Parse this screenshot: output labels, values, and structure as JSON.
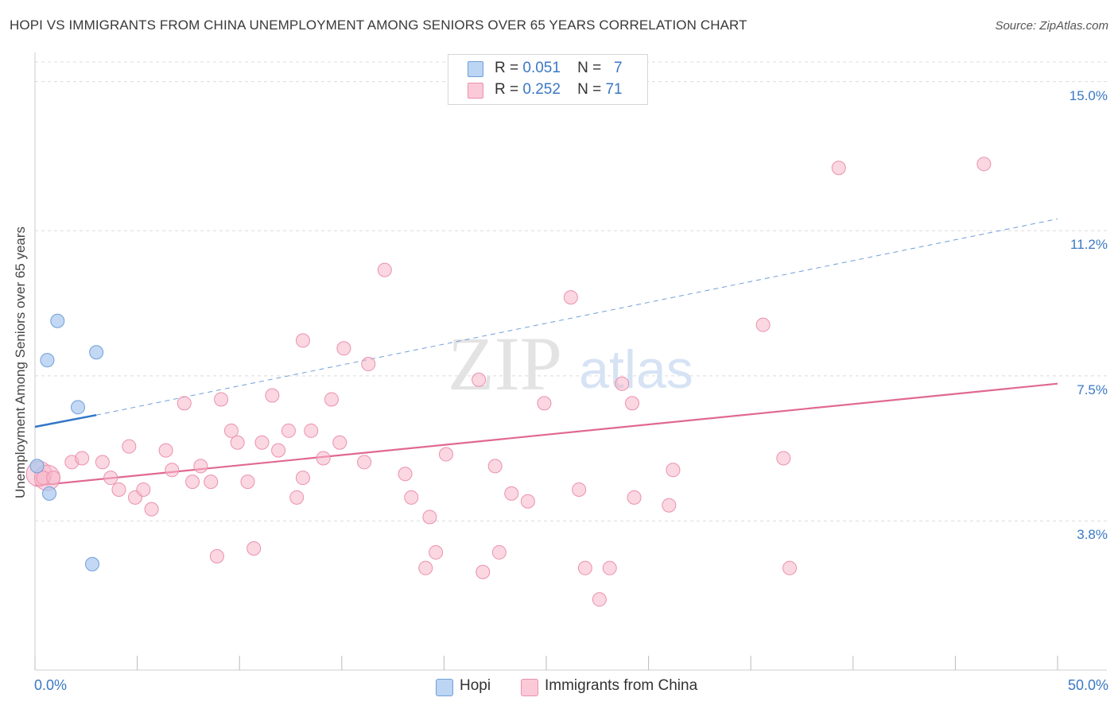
{
  "title": "HOPI VS IMMIGRANTS FROM CHINA UNEMPLOYMENT AMONG SENIORS OVER 65 YEARS CORRELATION CHART",
  "source": "Source: ZipAtlas.com",
  "watermark": {
    "zip": "ZIP",
    "atlas": "atlas"
  },
  "legend_top": [
    {
      "r_label": "R =",
      "r_value": "0.051",
      "n_label": "N =",
      "n_value": "7"
    },
    {
      "r_label": "R =",
      "r_value": "0.252",
      "n_label": "N =",
      "n_value": "71"
    }
  ],
  "legend_bottom": [
    {
      "label": "Hopi"
    },
    {
      "label": "Immigrants from China"
    }
  ],
  "colors": {
    "hopi_fill": "#a9c8ef",
    "hopi_stroke": "#6f9fd8",
    "hopi_line": "#3276c8",
    "china_fill": "#f7b6cb",
    "china_stroke": "#ea91ae",
    "china_line": "#e06892",
    "grid": "#dcdcdc",
    "axis_text": "#3a78c4"
  },
  "chart_data": {
    "type": "scatter",
    "title": "HOPI VS IMMIGRANTS FROM CHINA UNEMPLOYMENT AMONG SENIORS OVER 65 YEARS CORRELATION CHART",
    "xlabel": "",
    "ylabel": "Unemployment Among Seniors over 65 years",
    "xlim": [
      0,
      50
    ],
    "ylim": [
      0,
      15.5
    ],
    "x_tick_labels": [
      "0.0%",
      "50.0%"
    ],
    "y_ticks": [
      {
        "value": 3.8,
        "label": "3.8%"
      },
      {
        "value": 7.5,
        "label": "7.5%"
      },
      {
        "value": 11.2,
        "label": "11.2%"
      },
      {
        "value": 15.0,
        "label": "15.0%"
      }
    ],
    "grid": true,
    "series": [
      {
        "name": "Hopi",
        "R": 0.051,
        "N": 7,
        "points": [
          [
            0.1,
            5.2
          ],
          [
            1.1,
            8.9
          ],
          [
            0.6,
            7.9
          ],
          [
            3.0,
            8.1
          ],
          [
            2.1,
            6.7
          ],
          [
            0.7,
            4.5
          ],
          [
            2.8,
            2.7
          ]
        ],
        "trend_solid": {
          "x": [
            0,
            3.0
          ],
          "y": [
            6.2,
            6.5
          ]
        },
        "trend_dashed": {
          "x": [
            3.0,
            50
          ],
          "y": [
            6.5,
            11.5
          ]
        }
      },
      {
        "name": "Immigrants from China",
        "R": 0.252,
        "N": 71,
        "points": [
          [
            0.4,
            4.9
          ],
          [
            0.9,
            4.9
          ],
          [
            1.8,
            5.3
          ],
          [
            2.3,
            5.4
          ],
          [
            3.3,
            5.3
          ],
          [
            3.7,
            4.9
          ],
          [
            4.1,
            4.6
          ],
          [
            4.6,
            5.7
          ],
          [
            4.9,
            4.4
          ],
          [
            5.3,
            4.6
          ],
          [
            5.7,
            4.1
          ],
          [
            6.4,
            5.6
          ],
          [
            6.7,
            5.1
          ],
          [
            7.3,
            6.8
          ],
          [
            7.7,
            4.8
          ],
          [
            8.1,
            5.2
          ],
          [
            8.6,
            4.8
          ],
          [
            8.9,
            2.9
          ],
          [
            9.1,
            6.9
          ],
          [
            9.6,
            6.1
          ],
          [
            9.9,
            5.8
          ],
          [
            10.4,
            4.8
          ],
          [
            10.7,
            3.1
          ],
          [
            11.1,
            5.8
          ],
          [
            11.6,
            7.0
          ],
          [
            11.9,
            5.6
          ],
          [
            12.4,
            6.1
          ],
          [
            12.8,
            4.4
          ],
          [
            13.1,
            8.4
          ],
          [
            13.1,
            4.9
          ],
          [
            13.5,
            6.1
          ],
          [
            14.1,
            5.4
          ],
          [
            14.5,
            6.9
          ],
          [
            14.9,
            5.8
          ],
          [
            15.1,
            8.2
          ],
          [
            16.1,
            5.3
          ],
          [
            16.3,
            7.8
          ],
          [
            17.1,
            10.2
          ],
          [
            18.1,
            5.0
          ],
          [
            18.4,
            4.4
          ],
          [
            19.1,
            2.6
          ],
          [
            19.3,
            3.9
          ],
          [
            19.6,
            3.0
          ],
          [
            20.1,
            5.5
          ],
          [
            21.7,
            7.4
          ],
          [
            21.9,
            2.5
          ],
          [
            22.5,
            5.2
          ],
          [
            22.7,
            3.0
          ],
          [
            23.3,
            4.5
          ],
          [
            24.1,
            4.3
          ],
          [
            24.9,
            6.8
          ],
          [
            26.2,
            9.5
          ],
          [
            26.6,
            4.6
          ],
          [
            26.9,
            2.6
          ],
          [
            27.6,
            1.8
          ],
          [
            28.1,
            2.6
          ],
          [
            28.7,
            7.3
          ],
          [
            29.2,
            6.8
          ],
          [
            29.3,
            4.4
          ],
          [
            31.0,
            4.2
          ],
          [
            31.2,
            5.1
          ],
          [
            35.6,
            8.8
          ],
          [
            36.6,
            5.4
          ],
          [
            36.9,
            2.6
          ],
          [
            39.3,
            12.8
          ],
          [
            46.4,
            12.9
          ]
        ],
        "big_points": [
          [
            0.2,
            5.0
          ],
          [
            0.6,
            4.9
          ]
        ],
        "trend": {
          "x": [
            0,
            50
          ],
          "y": [
            4.7,
            7.3
          ]
        }
      }
    ]
  }
}
